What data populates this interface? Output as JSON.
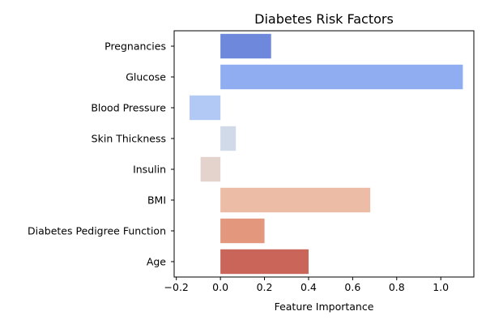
{
  "chart_data": {
    "type": "bar",
    "orientation": "horizontal",
    "title": "Diabetes Risk Factors",
    "xlabel": "Feature Importance",
    "ylabel": "",
    "xlim": [
      -0.21,
      1.15
    ],
    "xticks": [
      -0.2,
      0.0,
      0.2,
      0.4,
      0.6,
      0.8,
      1.0
    ],
    "xtick_labels": [
      "−0.2",
      "0.0",
      "0.2",
      "0.4",
      "0.6",
      "0.8",
      "1.0"
    ],
    "categories": [
      "Pregnancies",
      "Glucose",
      "Blood Pressure",
      "Skin Thickness",
      "Insulin",
      "BMI",
      "Diabetes Pedigree Function",
      "Age"
    ],
    "values": [
      0.23,
      1.1,
      -0.14,
      0.07,
      -0.09,
      0.68,
      0.2,
      0.4
    ],
    "colors": [
      "#6e89dc",
      "#8fadf0",
      "#b2c8f5",
      "#d1dae8",
      "#e3d3cc",
      "#ecbca7",
      "#e3977d",
      "#ca655a"
    ],
    "grid": false,
    "legend": "none"
  }
}
